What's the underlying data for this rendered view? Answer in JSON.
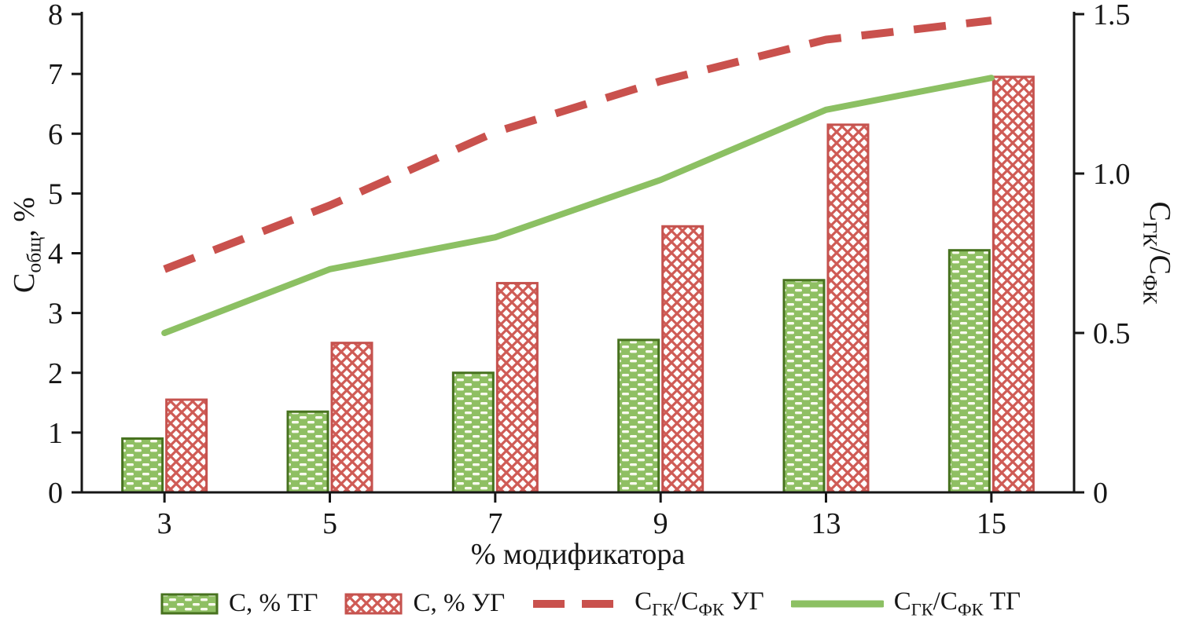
{
  "axes": {
    "x_title": "% модификатора",
    "left_title": {
      "p1": "С",
      "s1": "общ",
      "p2": ", %"
    },
    "right_title": {
      "p1": "С",
      "s1": "ГК",
      "p2": "/С",
      "s2": "ФК"
    }
  },
  "legend": {
    "items": [
      {
        "label": "С, % ТГ"
      },
      {
        "label": "С, % УГ"
      },
      {
        "p1": "С",
        "s1": "ГК",
        "p2": "/С",
        "s2": "ФК",
        "p3": " УГ"
      },
      {
        "p1": "С",
        "s1": "ГК",
        "p2": "/С",
        "s2": "ФК",
        "p3": " ТГ"
      }
    ]
  },
  "colors": {
    "axis": "#161616",
    "background": "#ffffff",
    "green_fill": "#8fbf63",
    "green_edge": "#47721f",
    "red": "#c9514d",
    "hatch_white": "#fafaef"
  },
  "chart_data": {
    "type": "combo-bar-line",
    "categories": [
      "3",
      "5",
      "7",
      "9",
      "13",
      "15"
    ],
    "x_label": "% модификатора",
    "left_axis": {
      "label": "Собщ, %",
      "min": 0,
      "max": 8,
      "ticks": [
        0,
        1,
        2,
        3,
        4,
        5,
        6,
        7,
        8
      ]
    },
    "right_axis": {
      "label": "Сгк/Сфк",
      "min": 0,
      "max": 1.5,
      "ticks": [
        0,
        0.5,
        1.0,
        1.5
      ],
      "tick_labels": [
        "0",
        "0.5",
        "1.0",
        "1.5"
      ]
    },
    "series": [
      {
        "name": "С, % ТГ",
        "kind": "bar",
        "axis": "left",
        "values": [
          0.9,
          1.35,
          2.0,
          2.55,
          3.55,
          4.05
        ],
        "fill": "#8fbf63",
        "edge": "#47721f",
        "hatch": "white-dash-brick"
      },
      {
        "name": "С, % УГ",
        "kind": "bar",
        "axis": "left",
        "values": [
          1.55,
          2.5,
          3.5,
          4.45,
          6.15,
          6.95
        ],
        "fill": "#ffffff",
        "edge": "#c5524e",
        "hatch": "red-diagonal-crosshatch",
        "hatch_color": "#cf5b55"
      },
      {
        "name": "СГК/СФК УГ",
        "kind": "line",
        "style": "dashed",
        "axis": "right",
        "values": [
          0.7,
          0.9,
          1.13,
          1.29,
          1.42,
          1.48
        ],
        "color": "#c9514d"
      },
      {
        "name": "СГК/СФК ТГ",
        "kind": "line",
        "style": "solid",
        "axis": "right",
        "values": [
          0.5,
          0.7,
          0.8,
          0.98,
          1.2,
          1.3
        ],
        "color": "#8cc063"
      }
    ],
    "legend_position": "bottom",
    "grid": false
  }
}
